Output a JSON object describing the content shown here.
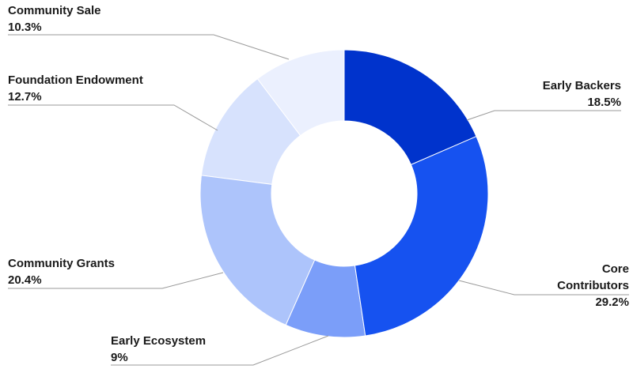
{
  "chart_data": {
    "type": "donut",
    "categories": [
      "Early Backers",
      "Core Contributors",
      "Early Ecosystem",
      "Community Grants",
      "Foundation Endowment",
      "Community Sale"
    ],
    "values": [
      18.5,
      29.2,
      9,
      20.4,
      12.7,
      10.3
    ],
    "value_labels": [
      "18.5%",
      "29.2%",
      "9%",
      "20.4%",
      "12.7%",
      "10.3%"
    ],
    "colors": [
      "#0033cc",
      "#1652f0",
      "#7b9ef9",
      "#adc4fb",
      "#d7e2fd",
      "#ebf0fe"
    ]
  }
}
